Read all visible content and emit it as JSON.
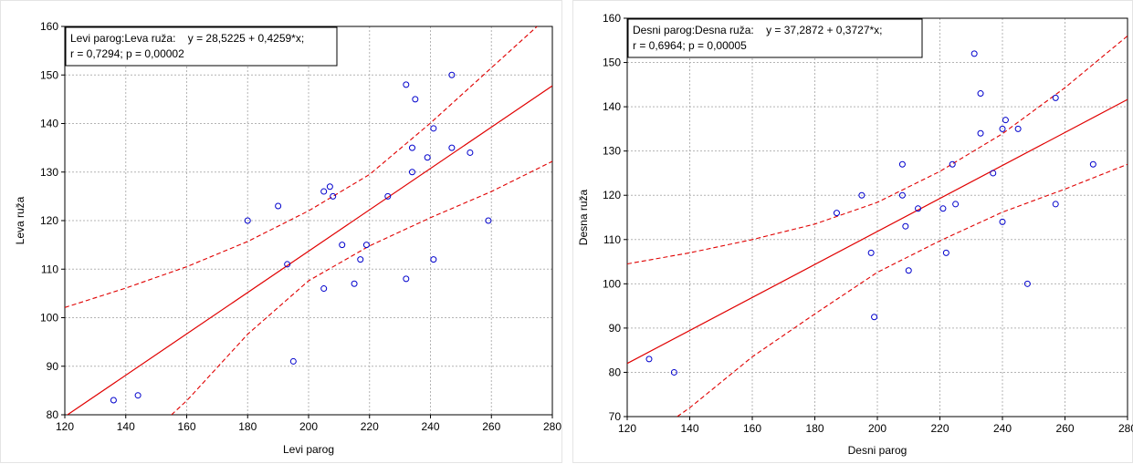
{
  "chart_data": [
    {
      "type": "scatter",
      "xlabel": "Levi parog",
      "ylabel": "Leva ruža",
      "xlim": [
        120,
        280
      ],
      "ylim": [
        80,
        160
      ],
      "xticks": [
        "120",
        "140",
        "160",
        "180",
        "200",
        "220",
        "240",
        "260",
        "280"
      ],
      "yticks": [
        "80",
        "90",
        "100",
        "110",
        "120",
        "130",
        "140",
        "150",
        "160"
      ],
      "grid": true,
      "annotation": [
        "Levi parog:Leva ruža:    y = 28,5225 + 0,4259*x;",
        "r = 0,7294; p = 0,00002"
      ],
      "regression": {
        "intercept": 28.5225,
        "slope": 0.4259,
        "r": 0.7294,
        "p": 2e-05
      },
      "confidence_band": {
        "upper": [
          [
            120,
            102.1
          ],
          [
            140,
            106.1
          ],
          [
            160,
            110.5
          ],
          [
            180,
            115.7
          ],
          [
            200,
            122.0
          ],
          [
            220,
            129.5
          ],
          [
            240,
            140.1
          ],
          [
            260,
            151.5
          ],
          [
            275,
            160
          ]
        ],
        "lower": [
          [
            155,
            80
          ],
          [
            160,
            82.9
          ],
          [
            180,
            96.6
          ],
          [
            200,
            107.6
          ],
          [
            220,
            114.8
          ],
          [
            240,
            120.6
          ],
          [
            260,
            126.0
          ],
          [
            280,
            132.2
          ]
        ]
      },
      "points": [
        {
          "x": 136,
          "y": 83
        },
        {
          "x": 144,
          "y": 84
        },
        {
          "x": 180,
          "y": 120
        },
        {
          "x": 190,
          "y": 123
        },
        {
          "x": 193,
          "y": 111
        },
        {
          "x": 195,
          "y": 91
        },
        {
          "x": 205,
          "y": 126
        },
        {
          "x": 205,
          "y": 106
        },
        {
          "x": 207,
          "y": 127
        },
        {
          "x": 208,
          "y": 125
        },
        {
          "x": 211,
          "y": 115
        },
        {
          "x": 215,
          "y": 107
        },
        {
          "x": 217,
          "y": 112
        },
        {
          "x": 219,
          "y": 115
        },
        {
          "x": 226,
          "y": 125
        },
        {
          "x": 232,
          "y": 148
        },
        {
          "x": 232,
          "y": 108
        },
        {
          "x": 234,
          "y": 135
        },
        {
          "x": 234,
          "y": 130
        },
        {
          "x": 235,
          "y": 145
        },
        {
          "x": 239,
          "y": 133
        },
        {
          "x": 241,
          "y": 139
        },
        {
          "x": 241,
          "y": 112
        },
        {
          "x": 247,
          "y": 150
        },
        {
          "x": 247,
          "y": 135
        },
        {
          "x": 253,
          "y": 134
        },
        {
          "x": 259,
          "y": 120
        }
      ]
    },
    {
      "type": "scatter",
      "xlabel": "Desni parog",
      "ylabel": "Desna ruža",
      "xlim": [
        120,
        280
      ],
      "ylim": [
        70,
        160
      ],
      "xticks": [
        "120",
        "140",
        "160",
        "180",
        "200",
        "220",
        "240",
        "260",
        "280"
      ],
      "yticks": [
        "70",
        "80",
        "90",
        "100",
        "110",
        "120",
        "130",
        "140",
        "150",
        "160"
      ],
      "grid": true,
      "annotation": [
        "Desni parog:Desna ruža:    y = 37,2872 + 0,3727*x;",
        "r = 0,6964; p = 0,00005"
      ],
      "regression": {
        "intercept": 37.2872,
        "slope": 0.3727,
        "r": 0.6964,
        "p": 5e-05
      },
      "confidence_band": {
        "upper": [
          [
            120,
            104.5
          ],
          [
            140,
            107.0
          ],
          [
            160,
            110.0
          ],
          [
            180,
            113.5
          ],
          [
            200,
            118.4
          ],
          [
            220,
            125.4
          ],
          [
            240,
            133.9
          ],
          [
            260,
            144.3
          ],
          [
            280,
            156.0
          ]
        ],
        "lower": [
          [
            136,
            70
          ],
          [
            140,
            72.0
          ],
          [
            160,
            83.5
          ],
          [
            180,
            93.2
          ],
          [
            200,
            102.6
          ],
          [
            220,
            109.7
          ],
          [
            240,
            116.2
          ],
          [
            260,
            121.4
          ],
          [
            280,
            127.0
          ]
        ]
      },
      "points": [
        {
          "x": 127,
          "y": 83
        },
        {
          "x": 135,
          "y": 80
        },
        {
          "x": 187,
          "y": 116
        },
        {
          "x": 195,
          "y": 120
        },
        {
          "x": 198,
          "y": 107
        },
        {
          "x": 199,
          "y": 92.5
        },
        {
          "x": 208,
          "y": 127
        },
        {
          "x": 208,
          "y": 120
        },
        {
          "x": 209,
          "y": 113
        },
        {
          "x": 210,
          "y": 103
        },
        {
          "x": 213,
          "y": 117
        },
        {
          "x": 221,
          "y": 117
        },
        {
          "x": 222,
          "y": 107
        },
        {
          "x": 224,
          "y": 127
        },
        {
          "x": 225,
          "y": 118
        },
        {
          "x": 231,
          "y": 152
        },
        {
          "x": 233,
          "y": 143
        },
        {
          "x": 233,
          "y": 134
        },
        {
          "x": 237,
          "y": 125
        },
        {
          "x": 240,
          "y": 135
        },
        {
          "x": 241,
          "y": 137
        },
        {
          "x": 240,
          "y": 114
        },
        {
          "x": 245,
          "y": 135
        },
        {
          "x": 248,
          "y": 100
        },
        {
          "x": 257,
          "y": 142
        },
        {
          "x": 257,
          "y": 118
        },
        {
          "x": 269,
          "y": 127
        }
      ]
    }
  ]
}
